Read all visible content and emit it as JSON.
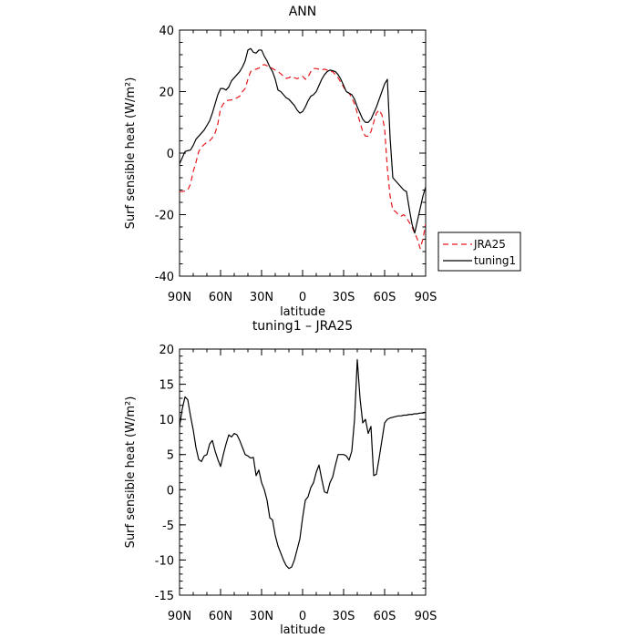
{
  "chart_data": [
    {
      "type": "line",
      "title": "ANN",
      "xlabel": "latitude",
      "ylabel": "Surf sensible heat (W/m²)",
      "xticks": [
        "90N",
        "60N",
        "30N",
        "0",
        "30S",
        "60S",
        "90S"
      ],
      "xlim": [
        90,
        -90
      ],
      "ylim": [
        -40,
        40
      ],
      "yticks": [
        -40,
        -20,
        0,
        20,
        40
      ],
      "legend_placement": "right",
      "series": [
        {
          "name": "JRA25",
          "color": "#e8171c",
          "dash": "dashed",
          "x": [
            90,
            88,
            86,
            84,
            82,
            80,
            78,
            76,
            74,
            72,
            70,
            68,
            66,
            64,
            62,
            60,
            58,
            56,
            54,
            52,
            50,
            48,
            46,
            44,
            42,
            40,
            38,
            36,
            34,
            32,
            30,
            28,
            26,
            24,
            22,
            20,
            18,
            16,
            14,
            12,
            10,
            8,
            6,
            4,
            2,
            0,
            -2,
            -4,
            -6,
            -8,
            -10,
            -12,
            -14,
            -16,
            -18,
            -20,
            -22,
            -24,
            -26,
            -28,
            -30,
            -32,
            -34,
            -36,
            -38,
            -40,
            -42,
            -44,
            -46,
            -48,
            -50,
            -52,
            -54,
            -56,
            -58,
            -60,
            -62,
            -64,
            -66,
            -68,
            -70,
            -72,
            -74,
            -76,
            -78,
            -80,
            -82,
            -84,
            -86,
            -88,
            -90
          ],
          "y": [
            -12.5,
            -12.5,
            -12.3,
            -12.0,
            -10.0,
            -6.0,
            -3.0,
            0.5,
            2.0,
            2.8,
            3.5,
            4.0,
            5.0,
            6.5,
            9.5,
            14.5,
            16.0,
            17.0,
            17.2,
            17.3,
            17.5,
            18.0,
            18.5,
            20.0,
            21.0,
            24.0,
            26.5,
            27.0,
            27.3,
            27.6,
            28.5,
            28.8,
            28.4,
            28.0,
            27.5,
            27.0,
            26.5,
            25.8,
            25.0,
            24.3,
            24.5,
            25.0,
            24.5,
            24.2,
            24.5,
            25.0,
            24.0,
            24.8,
            26.5,
            27.5,
            27.5,
            27.3,
            27.0,
            27.3,
            27.0,
            26.5,
            26.5,
            25.5,
            24.5,
            23.0,
            21.5,
            20.0,
            19.5,
            18.0,
            16.0,
            13.0,
            10.0,
            7.0,
            5.5,
            5.5,
            7.0,
            10.0,
            13.0,
            14.0,
            12.5,
            8.0,
            -5.0,
            -14.0,
            -18.5,
            -19.0,
            -20.0,
            -20.5,
            -20.0,
            -21.0,
            -22.5,
            -24.0,
            -26.0,
            -28.0,
            -31.0,
            -28.0,
            -23.0
          ]
        },
        {
          "name": "tuning1",
          "color": "#000000",
          "dash": "solid",
          "x": [
            90,
            88,
            86,
            84,
            82,
            80,
            78,
            76,
            74,
            72,
            70,
            68,
            66,
            64,
            62,
            60,
            58,
            56,
            54,
            52,
            50,
            48,
            46,
            44,
            42,
            40,
            38,
            36,
            34,
            32,
            30,
            28,
            26,
            24,
            22,
            20,
            18,
            16,
            14,
            12,
            10,
            8,
            6,
            4,
            2,
            0,
            -2,
            -4,
            -6,
            -8,
            -10,
            -12,
            -14,
            -16,
            -18,
            -20,
            -22,
            -24,
            -26,
            -28,
            -30,
            -32,
            -34,
            -36,
            -38,
            -40,
            -42,
            -44,
            -46,
            -48,
            -50,
            -52,
            -54,
            -56,
            -58,
            -60,
            -62,
            -64,
            -66,
            -68,
            -70,
            -72,
            -74,
            -76,
            -78,
            -80,
            -82,
            -84,
            -86,
            -88,
            -90
          ],
          "y": [
            -3.5,
            -1.5,
            0.5,
            0.8,
            1.0,
            2.5,
            4.5,
            5.5,
            6.5,
            7.5,
            9.0,
            10.5,
            13.0,
            16.0,
            19.0,
            21.0,
            21.0,
            20.5,
            21.5,
            23.5,
            24.5,
            25.5,
            26.5,
            28.0,
            30.0,
            33.5,
            34.0,
            32.8,
            32.5,
            33.5,
            33.5,
            31.5,
            30.0,
            28.0,
            26.5,
            24.0,
            20.5,
            20.0,
            19.0,
            18.0,
            17.5,
            16.5,
            15.5,
            14.0,
            13.0,
            13.5,
            15.0,
            17.0,
            18.5,
            19.0,
            20.0,
            22.0,
            24.0,
            25.5,
            26.5,
            27.0,
            26.8,
            26.5,
            25.5,
            24.0,
            22.0,
            20.0,
            19.5,
            19.0,
            17.5,
            15.0,
            13.0,
            11.0,
            10.0,
            10.0,
            11.0,
            13.0,
            15.0,
            17.5,
            20.0,
            22.5,
            24.0,
            5.0,
            -8.0,
            -9.0,
            -10.0,
            -11.0,
            -12.0,
            -12.5,
            -18.0,
            -23.0,
            -26.0,
            -22.0,
            -18.0,
            -14.0,
            -11.0
          ]
        }
      ]
    },
    {
      "type": "line",
      "title": "tuning1 – JRA25",
      "xlabel": "latitude",
      "ylabel": "Surf sensible heat (W/m²)",
      "xticks": [
        "90N",
        "60N",
        "30N",
        "0",
        "30S",
        "60S",
        "90S"
      ],
      "xlim": [
        90,
        -90
      ],
      "ylim": [
        -15,
        20
      ],
      "yticks": [
        -15,
        -10,
        -5,
        0,
        5,
        10,
        15,
        20
      ],
      "series": [
        {
          "color": "#000000",
          "dash": "solid",
          "x": [
            90,
            88,
            86,
            84,
            82,
            80,
            78,
            76,
            74,
            72,
            70,
            68,
            66,
            64,
            62,
            60,
            58,
            56,
            54,
            52,
            50,
            48,
            46,
            44,
            42,
            40,
            38,
            36,
            34,
            32,
            30,
            28,
            26,
            24,
            22,
            20,
            18,
            16,
            14,
            12,
            10,
            8,
            6,
            4,
            2,
            0,
            -2,
            -4,
            -6,
            -8,
            -10,
            -12,
            -14,
            -16,
            -18,
            -20,
            -22,
            -24,
            -26,
            -28,
            -30,
            -32,
            -34,
            -36,
            -38,
            -40,
            -42,
            -44,
            -46,
            -48,
            -50,
            -52,
            -54,
            -56,
            -58,
            -60,
            -62,
            -64,
            -66,
            -68,
            -70,
            -72,
            -74,
            -76,
            -78,
            -80,
            -82,
            -84,
            -86,
            -88,
            -90
          ],
          "y": [
            9.0,
            11.5,
            13.2,
            12.8,
            10.5,
            8.5,
            6.0,
            4.3,
            4.0,
            4.8,
            5.0,
            6.5,
            7.0,
            5.5,
            4.3,
            3.3,
            5.0,
            6.5,
            7.8,
            7.5,
            8.0,
            7.8,
            7.0,
            6.0,
            5.0,
            4.8,
            4.5,
            4.6,
            2.0,
            2.8,
            1.0,
            0.0,
            -1.5,
            -4.0,
            -4.3,
            -6.5,
            -8.0,
            -9.0,
            -10.0,
            -10.8,
            -11.2,
            -11.0,
            -10.0,
            -8.5,
            -7.0,
            -4.0,
            -1.5,
            -1.0,
            0.3,
            1.0,
            2.5,
            3.5,
            1.5,
            -0.3,
            -0.5,
            1.0,
            1.8,
            3.5,
            5.0,
            5.0,
            5.0,
            4.8,
            4.2,
            5.5,
            10.0,
            18.5,
            13.0,
            9.5,
            10.0,
            8.0,
            9.0,
            2.0,
            2.2,
            4.5,
            7.0,
            9.5,
            10.0,
            10.2,
            10.3,
            10.4,
            10.5,
            10.5,
            10.6,
            10.6,
            10.7,
            10.7,
            10.8,
            10.8,
            10.9,
            10.9,
            11.0
          ]
        }
      ]
    }
  ]
}
